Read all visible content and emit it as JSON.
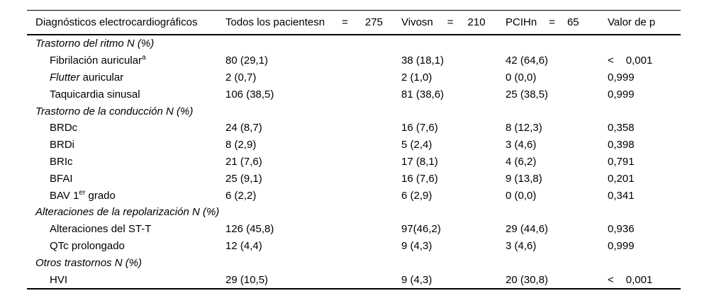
{
  "header": {
    "diagnostics": "Diagnósticos electrocardiográficos",
    "all_patients": {
      "label": "Todos los pacientesn",
      "eq": "=",
      "n": "275"
    },
    "alive": {
      "label": "Vivosn",
      "eq": "=",
      "n": "210"
    },
    "pcih": {
      "label": "PCIHn",
      "eq": "=",
      "n": "65"
    },
    "p_value": "Valor de p"
  },
  "rows": [
    {
      "kind": "section",
      "label": "Trastorno del ritmo N (%)"
    },
    {
      "kind": "item",
      "label": "Fibrilación auricular",
      "sup": "a",
      "all": "80 (29,1)",
      "alive": "38 (18,1)",
      "pcih": "42 (64,6)",
      "p_lt": "<",
      "p": "0,001"
    },
    {
      "kind": "item",
      "label_italic": "Flutter",
      "label_rest": " auricular",
      "all": "2 (0,7)",
      "alive": "2 (1,0)",
      "pcih": "0 (0,0)",
      "p": "0,999"
    },
    {
      "kind": "item",
      "label": "Taquicardia sinusal",
      "all": "106 (38,5)",
      "alive": "81 (38,6)",
      "pcih": "25 (38,5)",
      "p": "0,999"
    },
    {
      "kind": "section",
      "label": "Trastorno de la conducción N (%)"
    },
    {
      "kind": "item",
      "label": "BRDc",
      "all": "24 (8,7)",
      "alive": "16 (7,6)",
      "pcih": "8 (12,3)",
      "p": "0,358"
    },
    {
      "kind": "item",
      "label": "BRDi",
      "all": "8 (2,9)",
      "alive": "5 (2,4)",
      "pcih": "3 (4,6)",
      "p": "0,398"
    },
    {
      "kind": "item",
      "label": "BRIc",
      "all": "21 (7,6)",
      "alive": "17 (8,1)",
      "pcih": "4 (6,2)",
      "p": "0,791"
    },
    {
      "kind": "item",
      "label": "BFAI",
      "all": "25 (9,1)",
      "alive": "16 (7,6)",
      "pcih": "9 (13,8)",
      "p": "0,201"
    },
    {
      "kind": "item",
      "label": "BAV 1",
      "sup": "er",
      "label_rest": " grado",
      "all": "6 (2,2)",
      "alive": "6 (2,9)",
      "pcih": "0 (0,0)",
      "p": "0,341"
    },
    {
      "kind": "section",
      "label": "Alteraciones de la repolarización N (%)"
    },
    {
      "kind": "item",
      "label": "Alteraciones del ST-T",
      "all": "126 (45,8)",
      "alive": "97(46,2)",
      "pcih": "29 (44,6)",
      "p": "0,936"
    },
    {
      "kind": "item",
      "label": "QTc prolongado",
      "all": "12 (4,4)",
      "alive": "9 (4,3)",
      "pcih": "3 (4,6)",
      "p": "0,999"
    },
    {
      "kind": "section",
      "label": "Otros trastornos N (%)"
    },
    {
      "kind": "item",
      "label": "HVI",
      "all": "29 (10,5)",
      "alive": "9 (4,3)",
      "pcih": "20 (30,8)",
      "p_lt": "<",
      "p": "0,001"
    }
  ]
}
